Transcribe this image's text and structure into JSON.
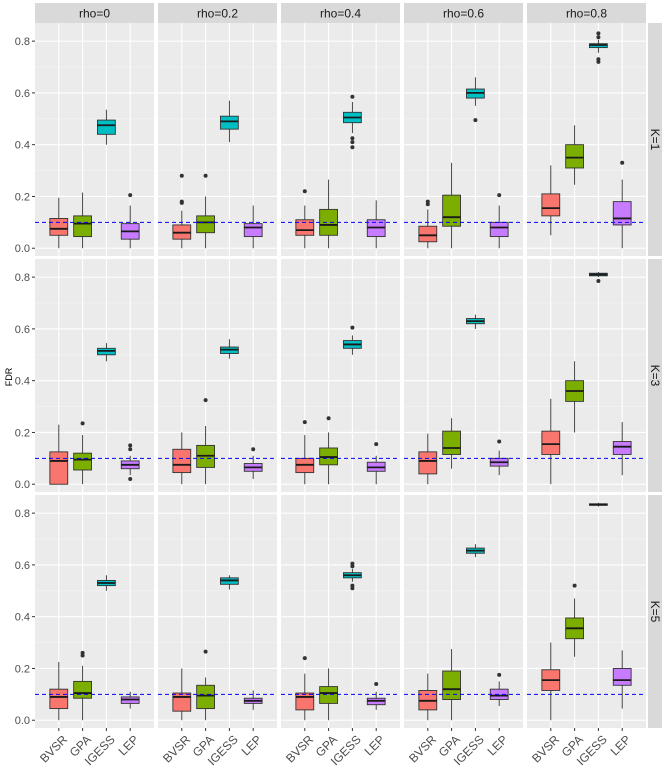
{
  "chart_data": {
    "type": "boxplot",
    "ylabel": "FDR",
    "xlabel": "",
    "ylim": [
      -0.03,
      0.87
    ],
    "y_ticks": [
      0.0,
      0.2,
      0.4,
      0.6,
      0.8
    ],
    "y_tick_labels": [
      "0.0",
      "0.2",
      "0.4",
      "0.6",
      "0.8"
    ],
    "reference_line": {
      "y": 0.1,
      "style": "dashed",
      "color": "#0000ff"
    },
    "categories": [
      "BVSR",
      "GPA",
      "IGESS",
      "LEP"
    ],
    "category_colors": {
      "BVSR": "#f8766d",
      "GPA": "#7cae00",
      "IGESS": "#00bfc4",
      "LEP": "#c77cff"
    },
    "columns": [
      "rho=0",
      "rho=0.2",
      "rho=0.4",
      "rho=0.6",
      "rho=0.8"
    ],
    "rows": [
      "K=1",
      "K=3",
      "K=5"
    ],
    "panels": [
      {
        "row": "K=1",
        "col": "rho=0",
        "boxes": [
          {
            "method": "BVSR",
            "min": 0.0,
            "q1": 0.05,
            "median": 0.075,
            "q3": 0.115,
            "max": 0.195,
            "outliers": []
          },
          {
            "method": "GPA",
            "min": 0.0,
            "q1": 0.045,
            "median": 0.095,
            "q3": 0.125,
            "max": 0.215,
            "outliers": []
          },
          {
            "method": "IGESS",
            "min": 0.4,
            "q1": 0.44,
            "median": 0.475,
            "q3": 0.495,
            "max": 0.535,
            "outliers": []
          },
          {
            "method": "LEP",
            "min": 0.0,
            "q1": 0.035,
            "median": 0.065,
            "q3": 0.095,
            "max": 0.165,
            "outliers": [
              0.205
            ]
          }
        ]
      },
      {
        "row": "K=1",
        "col": "rho=0.2",
        "boxes": [
          {
            "method": "BVSR",
            "min": 0.0,
            "q1": 0.035,
            "median": 0.06,
            "q3": 0.09,
            "max": 0.145,
            "outliers": [
              0.175,
              0.18,
              0.28
            ]
          },
          {
            "method": "GPA",
            "min": 0.0,
            "q1": 0.06,
            "median": 0.1,
            "q3": 0.125,
            "max": 0.2,
            "outliers": [
              0.28
            ]
          },
          {
            "method": "IGESS",
            "min": 0.41,
            "q1": 0.46,
            "median": 0.49,
            "q3": 0.51,
            "max": 0.57,
            "outliers": []
          },
          {
            "method": "LEP",
            "min": 0.0,
            "q1": 0.045,
            "median": 0.08,
            "q3": 0.095,
            "max": 0.165,
            "outliers": []
          }
        ]
      },
      {
        "row": "K=1",
        "col": "rho=0.4",
        "boxes": [
          {
            "method": "BVSR",
            "min": 0.0,
            "q1": 0.05,
            "median": 0.07,
            "q3": 0.11,
            "max": 0.165,
            "outliers": [
              0.22
            ]
          },
          {
            "method": "GPA",
            "min": 0.0,
            "q1": 0.05,
            "median": 0.09,
            "q3": 0.15,
            "max": 0.265,
            "outliers": []
          },
          {
            "method": "IGESS",
            "min": 0.445,
            "q1": 0.485,
            "median": 0.505,
            "q3": 0.525,
            "max": 0.565,
            "outliers": [
              0.39,
              0.41,
              0.425,
              0.585
            ]
          },
          {
            "method": "LEP",
            "min": 0.0,
            "q1": 0.045,
            "median": 0.08,
            "q3": 0.11,
            "max": 0.185,
            "outliers": []
          }
        ]
      },
      {
        "row": "K=1",
        "col": "rho=0.6",
        "boxes": [
          {
            "method": "BVSR",
            "min": 0.0,
            "q1": 0.025,
            "median": 0.05,
            "q3": 0.085,
            "max": 0.15,
            "outliers": [
              0.17,
              0.18
            ]
          },
          {
            "method": "GPA",
            "min": 0.0,
            "q1": 0.085,
            "median": 0.12,
            "q3": 0.205,
            "max": 0.33,
            "outliers": []
          },
          {
            "method": "IGESS",
            "min": 0.55,
            "q1": 0.58,
            "median": 0.6,
            "q3": 0.615,
            "max": 0.66,
            "outliers": [
              0.495
            ]
          },
          {
            "method": "LEP",
            "min": 0.0,
            "q1": 0.045,
            "median": 0.08,
            "q3": 0.1,
            "max": 0.165,
            "outliers": [
              0.205
            ]
          }
        ]
      },
      {
        "row": "K=1",
        "col": "rho=0.8",
        "boxes": [
          {
            "method": "BVSR",
            "min": 0.05,
            "q1": 0.125,
            "median": 0.155,
            "q3": 0.21,
            "max": 0.32,
            "outliers": []
          },
          {
            "method": "GPA",
            "min": 0.245,
            "q1": 0.31,
            "median": 0.35,
            "q3": 0.4,
            "max": 0.475,
            "outliers": []
          },
          {
            "method": "IGESS",
            "min": 0.755,
            "q1": 0.775,
            "median": 0.785,
            "q3": 0.79,
            "max": 0.805,
            "outliers": [
              0.72,
              0.73,
              0.815,
              0.83
            ]
          },
          {
            "method": "LEP",
            "min": 0.0,
            "q1": 0.09,
            "median": 0.115,
            "q3": 0.18,
            "max": 0.265,
            "outliers": [
              0.33
            ]
          }
        ]
      },
      {
        "row": "K=3",
        "col": "rho=0",
        "boxes": [
          {
            "method": "BVSR",
            "min": 0.0,
            "q1": 0.0,
            "median": 0.09,
            "q3": 0.125,
            "max": 0.23,
            "outliers": []
          },
          {
            "method": "GPA",
            "min": 0.0,
            "q1": 0.055,
            "median": 0.095,
            "q3": 0.12,
            "max": 0.19,
            "outliers": [
              0.235
            ]
          },
          {
            "method": "IGESS",
            "min": 0.475,
            "q1": 0.5,
            "median": 0.515,
            "q3": 0.525,
            "max": 0.545,
            "outliers": []
          },
          {
            "method": "LEP",
            "min": 0.035,
            "q1": 0.06,
            "median": 0.075,
            "q3": 0.09,
            "max": 0.11,
            "outliers": [
              0.02,
              0.135,
              0.15
            ]
          }
        ]
      },
      {
        "row": "K=3",
        "col": "rho=0.2",
        "boxes": [
          {
            "method": "BVSR",
            "min": 0.0,
            "q1": 0.045,
            "median": 0.075,
            "q3": 0.135,
            "max": 0.2,
            "outliers": []
          },
          {
            "method": "GPA",
            "min": 0.0,
            "q1": 0.065,
            "median": 0.11,
            "q3": 0.15,
            "max": 0.225,
            "outliers": [
              0.325
            ]
          },
          {
            "method": "IGESS",
            "min": 0.485,
            "q1": 0.505,
            "median": 0.52,
            "q3": 0.53,
            "max": 0.56,
            "outliers": []
          },
          {
            "method": "LEP",
            "min": 0.02,
            "q1": 0.05,
            "median": 0.065,
            "q3": 0.08,
            "max": 0.11,
            "outliers": [
              0.135
            ]
          }
        ]
      },
      {
        "row": "K=3",
        "col": "rho=0.4",
        "boxes": [
          {
            "method": "BVSR",
            "min": 0.0,
            "q1": 0.045,
            "median": 0.075,
            "q3": 0.1,
            "max": 0.19,
            "outliers": [
              0.24
            ]
          },
          {
            "method": "GPA",
            "min": 0.0,
            "q1": 0.075,
            "median": 0.105,
            "q3": 0.14,
            "max": 0.2,
            "outliers": [
              0.255
            ]
          },
          {
            "method": "IGESS",
            "min": 0.5,
            "q1": 0.525,
            "median": 0.54,
            "q3": 0.555,
            "max": 0.575,
            "outliers": [
              0.605
            ]
          },
          {
            "method": "LEP",
            "min": 0.0,
            "q1": 0.05,
            "median": 0.065,
            "q3": 0.085,
            "max": 0.11,
            "outliers": [
              0.155
            ]
          }
        ]
      },
      {
        "row": "K=3",
        "col": "rho=0.6",
        "boxes": [
          {
            "method": "BVSR",
            "min": 0.0,
            "q1": 0.04,
            "median": 0.09,
            "q3": 0.125,
            "max": 0.195,
            "outliers": []
          },
          {
            "method": "GPA",
            "min": 0.06,
            "q1": 0.115,
            "median": 0.14,
            "q3": 0.205,
            "max": 0.255,
            "outliers": []
          },
          {
            "method": "IGESS",
            "min": 0.6,
            "q1": 0.62,
            "median": 0.63,
            "q3": 0.64,
            "max": 0.655,
            "outliers": []
          },
          {
            "method": "LEP",
            "min": 0.035,
            "q1": 0.07,
            "median": 0.085,
            "q3": 0.1,
            "max": 0.13,
            "outliers": [
              0.165
            ]
          }
        ]
      },
      {
        "row": "K=3",
        "col": "rho=0.8",
        "boxes": [
          {
            "method": "BVSR",
            "min": 0.0,
            "q1": 0.115,
            "median": 0.155,
            "q3": 0.205,
            "max": 0.33,
            "outliers": []
          },
          {
            "method": "GPA",
            "min": 0.2,
            "q1": 0.32,
            "median": 0.36,
            "q3": 0.4,
            "max": 0.475,
            "outliers": []
          },
          {
            "method": "IGESS",
            "min": 0.8,
            "q1": 0.805,
            "median": 0.81,
            "q3": 0.815,
            "max": 0.82,
            "outliers": [
              0.785
            ]
          },
          {
            "method": "LEP",
            "min": 0.035,
            "q1": 0.115,
            "median": 0.145,
            "q3": 0.165,
            "max": 0.24,
            "outliers": []
          }
        ]
      },
      {
        "row": "K=5",
        "col": "rho=0",
        "boxes": [
          {
            "method": "BVSR",
            "min": 0.0,
            "q1": 0.045,
            "median": 0.09,
            "q3": 0.12,
            "max": 0.225,
            "outliers": []
          },
          {
            "method": "GPA",
            "min": 0.0,
            "q1": 0.085,
            "median": 0.105,
            "q3": 0.15,
            "max": 0.21,
            "outliers": [
              0.25,
              0.26
            ]
          },
          {
            "method": "IGESS",
            "min": 0.5,
            "q1": 0.52,
            "median": 0.53,
            "q3": 0.54,
            "max": 0.56,
            "outliers": []
          },
          {
            "method": "LEP",
            "min": 0.045,
            "q1": 0.065,
            "median": 0.08,
            "q3": 0.09,
            "max": 0.11,
            "outliers": []
          }
        ]
      },
      {
        "row": "K=5",
        "col": "rho=0.2",
        "boxes": [
          {
            "method": "BVSR",
            "min": 0.0,
            "q1": 0.035,
            "median": 0.09,
            "q3": 0.105,
            "max": 0.2,
            "outliers": []
          },
          {
            "method": "GPA",
            "min": 0.0,
            "q1": 0.045,
            "median": 0.095,
            "q3": 0.135,
            "max": 0.165,
            "outliers": [
              0.265
            ]
          },
          {
            "method": "IGESS",
            "min": 0.505,
            "q1": 0.525,
            "median": 0.54,
            "q3": 0.55,
            "max": 0.56,
            "outliers": []
          },
          {
            "method": "LEP",
            "min": 0.04,
            "q1": 0.065,
            "median": 0.075,
            "q3": 0.085,
            "max": 0.115,
            "outliers": []
          }
        ]
      },
      {
        "row": "K=5",
        "col": "rho=0.4",
        "boxes": [
          {
            "method": "BVSR",
            "min": 0.0,
            "q1": 0.04,
            "median": 0.09,
            "q3": 0.105,
            "max": 0.18,
            "outliers": [
              0.24
            ]
          },
          {
            "method": "GPA",
            "min": 0.0,
            "q1": 0.065,
            "median": 0.105,
            "q3": 0.13,
            "max": 0.2,
            "outliers": []
          },
          {
            "method": "IGESS",
            "min": 0.535,
            "q1": 0.55,
            "median": 0.56,
            "q3": 0.57,
            "max": 0.585,
            "outliers": [
              0.51,
              0.52,
              0.595,
              0.605
            ]
          },
          {
            "method": "LEP",
            "min": 0.04,
            "q1": 0.06,
            "median": 0.075,
            "q3": 0.085,
            "max": 0.11,
            "outliers": [
              0.14
            ]
          }
        ]
      },
      {
        "row": "K=5",
        "col": "rho=0.6",
        "boxes": [
          {
            "method": "BVSR",
            "min": 0.0,
            "q1": 0.04,
            "median": 0.075,
            "q3": 0.115,
            "max": 0.18,
            "outliers": []
          },
          {
            "method": "GPA",
            "min": 0.0,
            "q1": 0.08,
            "median": 0.12,
            "q3": 0.19,
            "max": 0.275,
            "outliers": []
          },
          {
            "method": "IGESS",
            "min": 0.63,
            "q1": 0.645,
            "median": 0.655,
            "q3": 0.665,
            "max": 0.68,
            "outliers": []
          },
          {
            "method": "LEP",
            "min": 0.055,
            "q1": 0.08,
            "median": 0.095,
            "q3": 0.12,
            "max": 0.15,
            "outliers": [
              0.175
            ]
          }
        ]
      },
      {
        "row": "K=5",
        "col": "rho=0.8",
        "boxes": [
          {
            "method": "BVSR",
            "min": 0.0,
            "q1": 0.115,
            "median": 0.155,
            "q3": 0.195,
            "max": 0.3,
            "outliers": []
          },
          {
            "method": "GPA",
            "min": 0.245,
            "q1": 0.315,
            "median": 0.355,
            "q3": 0.395,
            "max": 0.47,
            "outliers": [
              0.52
            ]
          },
          {
            "method": "IGESS",
            "min": 0.825,
            "q1": 0.83,
            "median": 0.833,
            "q3": 0.836,
            "max": 0.84,
            "outliers": []
          },
          {
            "method": "LEP",
            "min": 0.045,
            "q1": 0.135,
            "median": 0.155,
            "q3": 0.2,
            "max": 0.27,
            "outliers": []
          }
        ]
      }
    ]
  }
}
